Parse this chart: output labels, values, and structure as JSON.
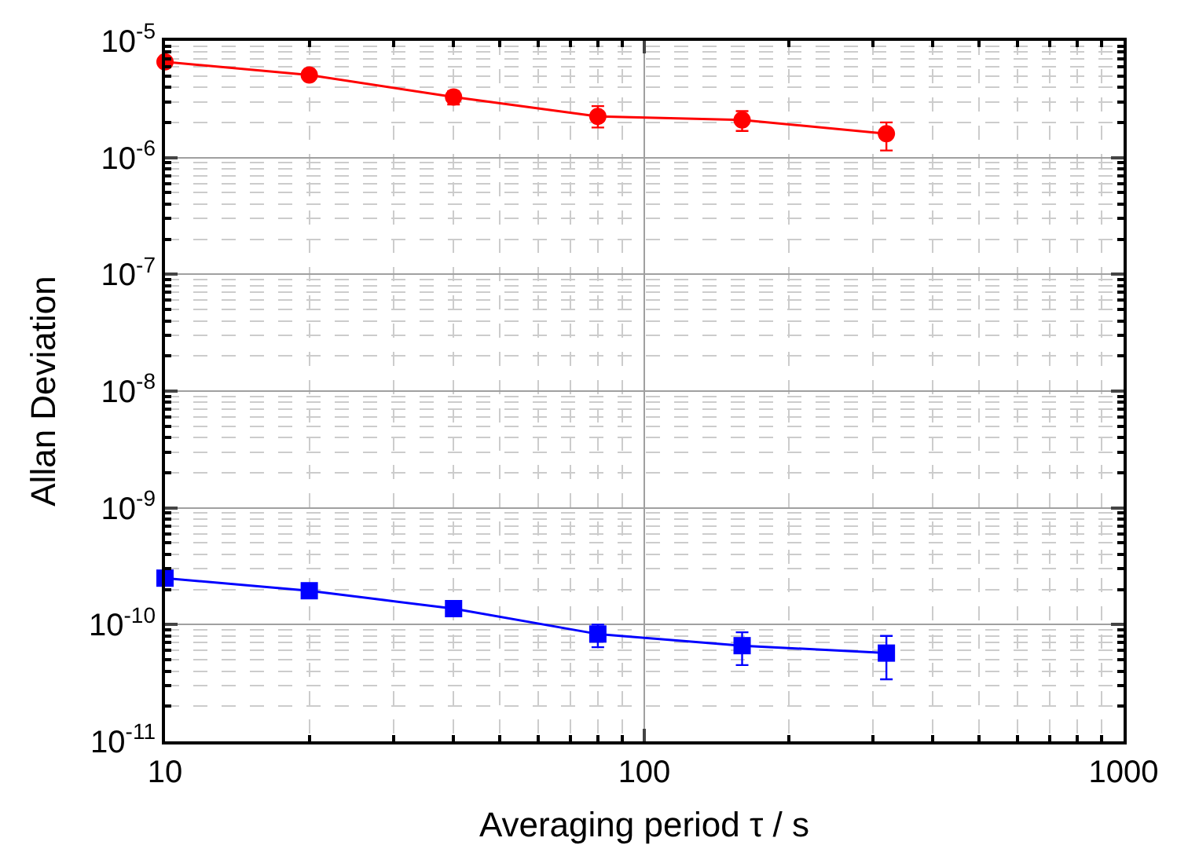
{
  "chart_data": {
    "type": "line",
    "xlabel": "Averaging period τ / s",
    "ylabel": "Allan Deviation",
    "log": "xy",
    "grid": true,
    "xlim": [
      10,
      1000
    ],
    "xticks": [
      10,
      100,
      1000
    ],
    "ylim": [
      1e-11,
      1e-05
    ],
    "yticks": [
      {
        "value": 1e-11,
        "label": "10$^{-11}$"
      },
      {
        "value": 1e-10,
        "label": "10$^{-10}$"
      },
      {
        "value": 1e-09,
        "label": "10$^{-9}$"
      },
      {
        "value": 1e-08,
        "label": "10$^{-8}$"
      },
      {
        "value": 1e-07,
        "label": "10$^{-7}$"
      },
      {
        "value": 1e-06,
        "label": "10$^{-6}$"
      },
      {
        "value": 1e-05,
        "label": "10$^{-5}$"
      }
    ],
    "x": [
      10,
      20,
      40,
      80,
      160,
      320
    ],
    "series": [
      {
        "color": "#ff0000",
        "marker": "circle",
        "values": [
          6.6e-06,
          5.1e-06,
          3.3e-06,
          2.25e-06,
          2.1e-06,
          1.6e-06
        ],
        "errors": [
          null,
          null,
          [
            2.85e-06,
            3.7e-06
          ],
          [
            1.81e-06,
            2.76e-06
          ],
          [
            1.69e-06,
            2.5e-06
          ],
          [
            1.15e-06,
            2e-06
          ]
        ]
      },
      {
        "color": "#0000ff",
        "marker": "square",
        "values": [
          2.5e-10,
          1.95e-10,
          1.37e-10,
          8.3e-11,
          6.6e-11,
          5.7e-11
        ],
        "errors": [
          null,
          null,
          null,
          [
            6.4e-11,
            1e-10
          ],
          [
            4.5e-11,
            8.6e-11
          ],
          [
            3.4e-11,
            8e-11
          ]
        ]
      }
    ]
  }
}
